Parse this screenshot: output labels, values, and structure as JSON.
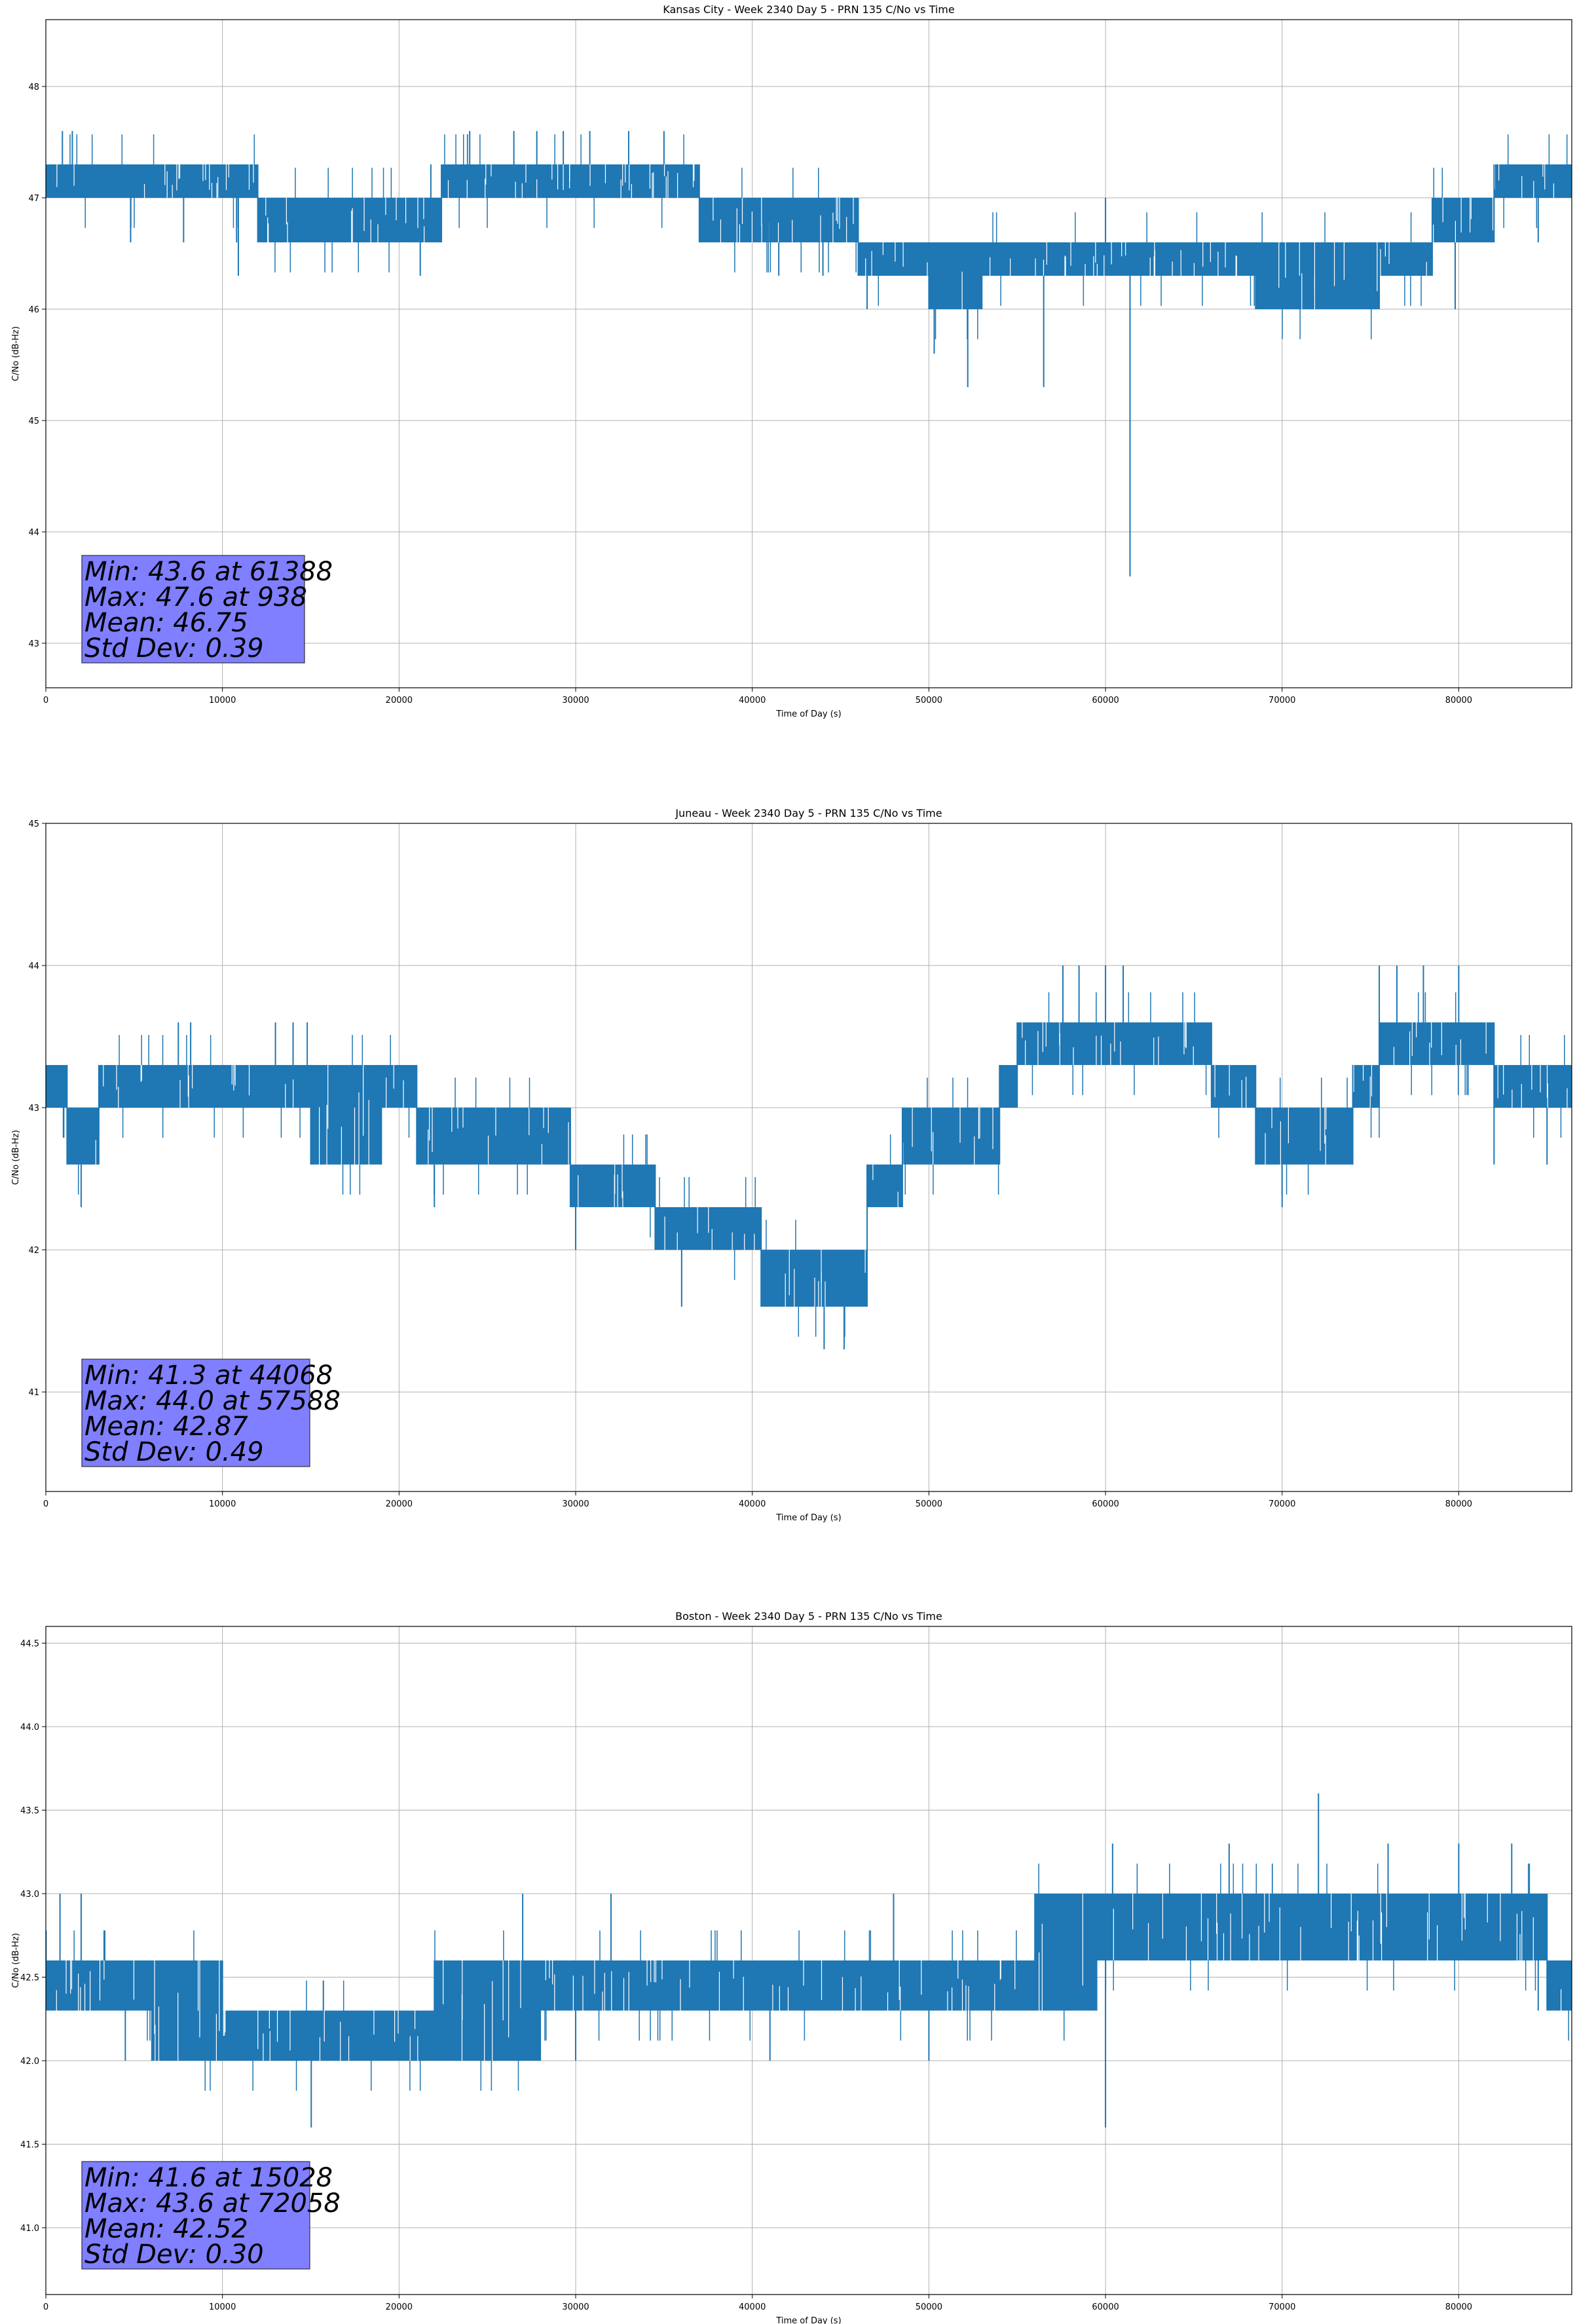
{
  "colors": {
    "line": "#1f77b4",
    "grid": "#b0b0b0",
    "statbox": "#7f7fff"
  },
  "chart_data": [
    {
      "type": "line",
      "title": "Kansas City - Week 2340 Day 5 - PRN 135 C/No vs Time",
      "xlabel": "Time of Day (s)",
      "ylabel": "C/No (dB-Hz)",
      "xlim": [
        0,
        86400
      ],
      "ylim": [
        42.6,
        48.6
      ],
      "xticks": [
        0,
        10000,
        20000,
        30000,
        40000,
        50000,
        60000,
        70000,
        80000
      ],
      "xtick_labels": [
        "0",
        "10000",
        "20000",
        "30000",
        "40000",
        "50000",
        "60000",
        "70000",
        "80000"
      ],
      "yticks": [
        43,
        44,
        45,
        46,
        47,
        48
      ],
      "ytick_labels": [
        "43",
        "44",
        "45",
        "46",
        "47",
        "48"
      ],
      "grid": true,
      "series": [
        {
          "name": "C/No",
          "segments": [
            [
              0,
              12000,
              47.0,
              47.3
            ],
            [
              12000,
              22400,
              46.6,
              47.0
            ],
            [
              22400,
              37000,
              47.0,
              47.3
            ],
            [
              37000,
              41000,
              46.6,
              47.0
            ],
            [
              41000,
              46000,
              46.6,
              47.0
            ],
            [
              46000,
              50000,
              46.3,
              46.6
            ],
            [
              50000,
              53000,
              46.0,
              46.6
            ],
            [
              53000,
              60000,
              46.3,
              46.6
            ],
            [
              60000,
              68500,
              46.3,
              46.6
            ],
            [
              68500,
              75500,
              46.0,
              46.6
            ],
            [
              75500,
              78500,
              46.3,
              46.6
            ],
            [
              78500,
              82000,
              46.6,
              47.0
            ],
            [
              82000,
              86400,
              47.0,
              47.3
            ]
          ],
          "spikes": [
            [
              938,
              47.6
            ],
            [
              1500,
              47.6
            ],
            [
              4800,
              46.6
            ],
            [
              7800,
              46.6
            ],
            [
              10800,
              46.6
            ],
            [
              10900,
              46.3
            ],
            [
              21200,
              46.3
            ],
            [
              21800,
              47.3
            ],
            [
              24000,
              47.6
            ],
            [
              26500,
              47.6
            ],
            [
              27800,
              47.6
            ],
            [
              29300,
              47.6
            ],
            [
              30800,
              47.6
            ],
            [
              33000,
              47.6
            ],
            [
              35000,
              47.6
            ],
            [
              39000,
              46.6
            ],
            [
              41500,
              46.3
            ],
            [
              44000,
              46.3
            ],
            [
              46500,
              46.0
            ],
            [
              50300,
              45.6
            ],
            [
              52200,
              45.3
            ],
            [
              56500,
              45.3
            ],
            [
              60000,
              47.0
            ],
            [
              61388,
              43.6
            ],
            [
              79800,
              46.0
            ],
            [
              84500,
              46.6
            ]
          ]
        }
      ],
      "annotation": [
        "Min: 43.6 at 61388",
        "Max: 47.6 at 938",
        "Mean: 46.75",
        "Std Dev: 0.39"
      ]
    },
    {
      "type": "line",
      "title": "Juneau - Week 2340 Day 5 - PRN 135 C/No vs Time",
      "xlabel": "Time of Day (s)",
      "ylabel": "C/No (dB-Hz)",
      "xlim": [
        0,
        86400
      ],
      "ylim": [
        40.3,
        45
      ],
      "xticks": [
        0,
        10000,
        20000,
        30000,
        40000,
        50000,
        60000,
        70000,
        80000
      ],
      "xtick_labels": [
        "0",
        "10000",
        "20000",
        "30000",
        "40000",
        "50000",
        "60000",
        "70000",
        "80000"
      ],
      "yticks": [
        41,
        42,
        43,
        44,
        45
      ],
      "ytick_labels": [
        "41",
        "42",
        "43",
        "44",
        "45"
      ],
      "grid": true,
      "series": [
        {
          "name": "C/No",
          "segments": [
            [
              0,
              1200,
              43.0,
              43.3
            ],
            [
              1200,
              3000,
              42.6,
              43.0
            ],
            [
              3000,
              15000,
              43.0,
              43.3
            ],
            [
              15000,
              19000,
              42.6,
              43.3
            ],
            [
              19000,
              21000,
              43.0,
              43.3
            ],
            [
              21000,
              29700,
              42.6,
              43.0
            ],
            [
              29700,
              34500,
              42.3,
              42.6
            ],
            [
              34500,
              40500,
              42.0,
              42.3
            ],
            [
              40500,
              46500,
              41.6,
              42.0
            ],
            [
              46500,
              48500,
              42.3,
              42.6
            ],
            [
              48500,
              54000,
              42.6,
              43.0
            ],
            [
              54000,
              55000,
              43.0,
              43.3
            ],
            [
              55000,
              62000,
              43.3,
              43.6
            ],
            [
              62000,
              66000,
              43.3,
              43.6
            ],
            [
              66000,
              68500,
              43.0,
              43.3
            ],
            [
              68500,
              74000,
              42.6,
              43.0
            ],
            [
              74000,
              75500,
              43.0,
              43.3
            ],
            [
              75500,
              82000,
              43.3,
              43.6
            ],
            [
              82000,
              86400,
              43.0,
              43.3
            ]
          ],
          "spikes": [
            [
              2000,
              42.3
            ],
            [
              7500,
              43.6
            ],
            [
              8200,
              43.6
            ],
            [
              13000,
              43.6
            ],
            [
              14000,
              43.6
            ],
            [
              14800,
              43.6
            ],
            [
              22000,
              42.3
            ],
            [
              30000,
              42.0
            ],
            [
              33500,
              42.6
            ],
            [
              36000,
              41.6
            ],
            [
              44068,
              41.3
            ],
            [
              45200,
              41.3
            ],
            [
              57588,
              44.0
            ],
            [
              58500,
              44.0
            ],
            [
              60000,
              44.0
            ],
            [
              61000,
              44.0
            ],
            [
              70000,
              42.3
            ],
            [
              75500,
              44.0
            ],
            [
              76500,
              44.0
            ],
            [
              78000,
              44.0
            ],
            [
              80000,
              44.0
            ],
            [
              82000,
              42.6
            ],
            [
              85000,
              42.6
            ]
          ]
        }
      ],
      "annotation": [
        "Min: 41.3 at 44068",
        "Max: 44.0 at 57588",
        "Mean: 42.87",
        "Std Dev: 0.49"
      ]
    },
    {
      "type": "line",
      "title": "Boston - Week 2340 Day 5 - PRN 135 C/No vs Time",
      "xlabel": "Time of Day (s)",
      "ylabel": "C/No (dB-Hz)",
      "xlim": [
        0,
        86400
      ],
      "ylim": [
        40.6,
        44.6
      ],
      "xticks": [
        0,
        10000,
        20000,
        30000,
        40000,
        50000,
        60000,
        70000,
        80000
      ],
      "xtick_labels": [
        "0",
        "10000",
        "20000",
        "30000",
        "40000",
        "50000",
        "60000",
        "70000",
        "80000"
      ],
      "yticks": [
        41.0,
        41.5,
        42.0,
        42.5,
        43.0,
        43.5,
        44.0,
        44.5
      ],
      "ytick_labels": [
        "41.0",
        "41.5",
        "42.0",
        "42.5",
        "43.0",
        "43.5",
        "44.0",
        "44.5"
      ],
      "grid": true,
      "series": [
        {
          "name": "C/No",
          "segments": [
            [
              0,
              6000,
              42.3,
              42.6
            ],
            [
              6000,
              10000,
              42.0,
              42.6
            ],
            [
              10000,
              22000,
              42.0,
              42.3
            ],
            [
              22000,
              28000,
              42.0,
              42.6
            ],
            [
              28000,
              56000,
              42.3,
              42.6
            ],
            [
              56000,
              59500,
              42.3,
              43.0
            ],
            [
              59500,
              66000,
              42.6,
              43.0
            ],
            [
              66000,
              72000,
              42.6,
              43.0
            ],
            [
              72000,
              81000,
              42.6,
              43.0
            ],
            [
              81000,
              85000,
              42.6,
              43.0
            ],
            [
              85000,
              86400,
              42.3,
              42.6
            ]
          ],
          "spikes": [
            [
              800,
              43.0
            ],
            [
              2000,
              43.0
            ],
            [
              4500,
              42.0
            ],
            [
              15028,
              41.6
            ],
            [
              27000,
              43.0
            ],
            [
              30000,
              42.0
            ],
            [
              32000,
              43.0
            ],
            [
              41000,
              42.0
            ],
            [
              48000,
              43.0
            ],
            [
              50000,
              42.0
            ],
            [
              60000,
              41.6
            ],
            [
              60400,
              43.3
            ],
            [
              67000,
              43.3
            ],
            [
              72058,
              43.6
            ],
            [
              76000,
              43.3
            ],
            [
              80000,
              43.3
            ],
            [
              83000,
              43.3
            ],
            [
              84500,
              42.3
            ]
          ]
        }
      ],
      "annotation": [
        "Min: 41.6 at 15028",
        "Max: 43.6 at 72058",
        "Mean: 42.52",
        "Std Dev: 0.30"
      ]
    }
  ]
}
